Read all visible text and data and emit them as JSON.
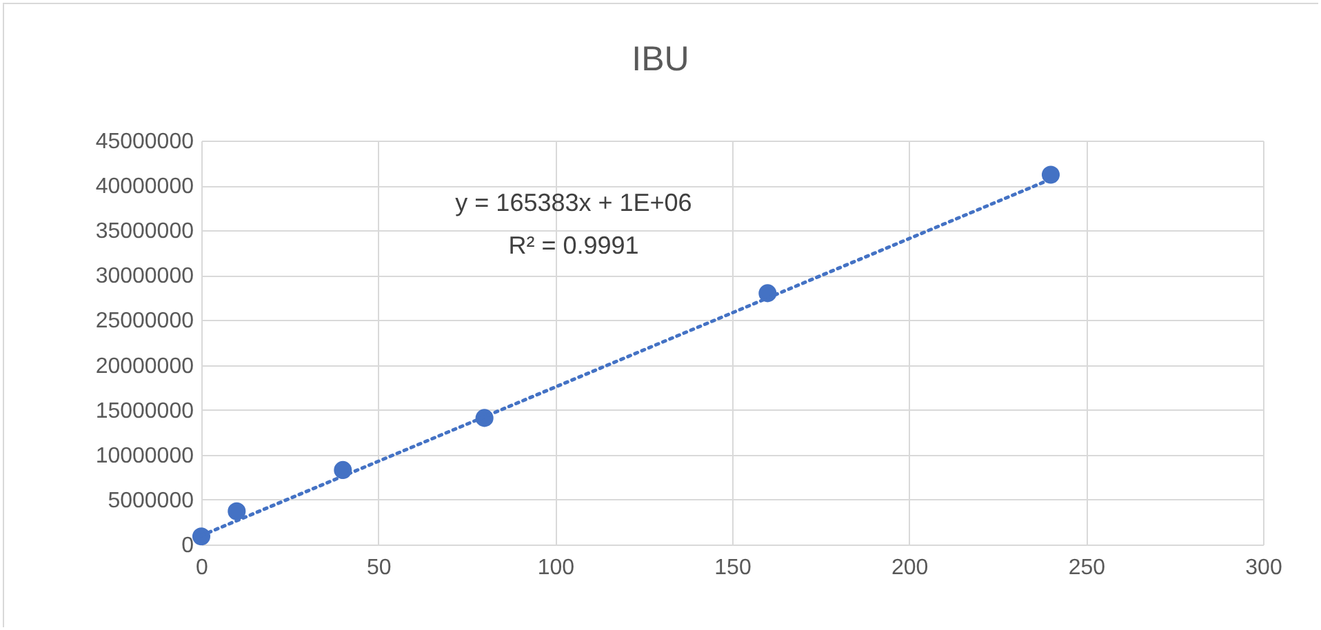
{
  "chart_data": {
    "type": "scatter",
    "title": "IBU",
    "xlim": [
      0,
      300
    ],
    "xticks": [
      0,
      50,
      100,
      150,
      200,
      250,
      300
    ],
    "ylim": [
      0,
      45000000
    ],
    "yticks": [
      0,
      5000000,
      10000000,
      15000000,
      20000000,
      25000000,
      30000000,
      35000000,
      40000000,
      45000000
    ],
    "grid": true,
    "marker": "circle",
    "series": [
      {
        "type": "scatter",
        "color": "#4472c4",
        "x": [
          0,
          10,
          40,
          80,
          160,
          240
        ],
        "values": [
          900000,
          3700000,
          8300000,
          14100000,
          28000000,
          41200000
        ]
      },
      {
        "type": "line",
        "color": "#4472c4",
        "line_style": "dotted",
        "marker": "none",
        "x": [
          0,
          240
        ],
        "values": [
          1000000,
          40700000
        ]
      }
    ],
    "annotations": [
      "y = 165383x + 1E+06",
      "R² = 0.9991"
    ]
  }
}
